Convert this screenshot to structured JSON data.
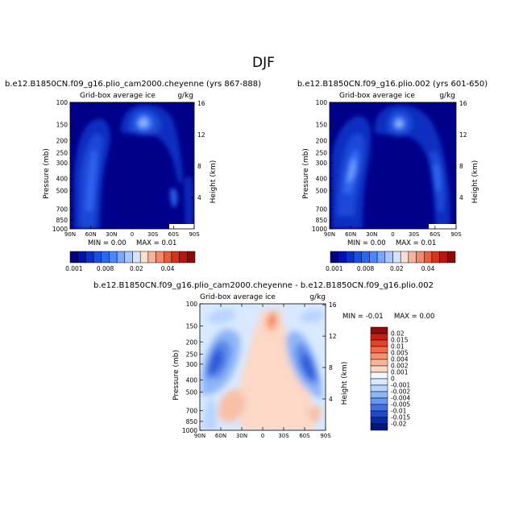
{
  "figure": {
    "season": "DJF",
    "panel_subtitle": "Grid-box average ice",
    "units": "g/kg",
    "y_left_label": "Pressure (mb)",
    "y_right_label": "Height (km)",
    "pressure_ticks": [
      "100",
      "150",
      "200",
      "250",
      "300",
      "400",
      "500",
      "700",
      "850",
      "1000"
    ],
    "height_ticks": [
      "16",
      "12",
      "8",
      "4"
    ],
    "lat_ticks": [
      "90N",
      "60N",
      "30N",
      "0",
      "30S",
      "60S",
      "90S"
    ]
  },
  "panels": [
    {
      "title": "b.e12.B1850CN.f09_g16.plio_cam2000.cheyenne (yrs 867-888)",
      "min_text": "MIN =    0.00",
      "max_text": "MAX =    0.01"
    },
    {
      "title": "b.e12.B1850CN.f09_g16.plio.002 (yrs 601-650)",
      "min_text": "MIN =    0.00",
      "max_text": "MAX =    0.01"
    },
    {
      "title": "b.e12.B1850CN.f09_g16.plio_cam2000.cheyenne - b.e12.B1850CN.f09_g16.plio.002",
      "min_text": "MIN =   -0.01",
      "max_text": "MAX =    0.00"
    }
  ],
  "colorbar_abs": {
    "labels": [
      "0.001",
      "0.008",
      "0.02",
      "0.04"
    ],
    "colors": [
      "#00007f",
      "#0010b0",
      "#0a2fd0",
      "#1a4ee0",
      "#2a66f0",
      "#4a86ff",
      "#7aa6ff",
      "#a8c6ff",
      "#d2e4ff",
      "#fde0cf",
      "#f8b39a",
      "#f38a6a",
      "#e95c3d",
      "#d8321f",
      "#b81610",
      "#8c0a08"
    ]
  },
  "colorbar_diff": {
    "labels": [
      "0.02",
      "0.015",
      "0.01",
      "0.005",
      "0.004",
      "0.002",
      "0.001",
      "0",
      "-0.001",
      "-0.002",
      "-0.004",
      "-0.005",
      "-0.01",
      "-0.015",
      "-0.02"
    ],
    "colors": [
      "#8b0c0c",
      "#c0221a",
      "#e0432a",
      "#f26a48",
      "#f69070",
      "#f9b59a",
      "#fcd8c6",
      "#f4f7ff",
      "#d9e9ff",
      "#b7d3ff",
      "#8fb6f7",
      "#6a96ef",
      "#4470e2",
      "#2249cc",
      "#0a2aa8",
      "#00157f"
    ]
  },
  "chart_data": [
    {
      "type": "heatmap",
      "title": "b.e12.B1850CN.f09_g16.plio_cam2000.cheyenne (yrs 867-888)",
      "subtitle": "Grid-box average ice",
      "xlabel": "",
      "ylabel": "Pressure (mb)",
      "y2label": "Height (km)",
      "units": "g/kg",
      "x_range": [
        "90N",
        "90S"
      ],
      "y_range": [
        1000,
        100
      ],
      "min": 0.0,
      "max": 0.01
    },
    {
      "type": "heatmap",
      "title": "b.e12.B1850CN.f09_g16.plio.002 (yrs 601-650)",
      "subtitle": "Grid-box average ice",
      "xlabel": "",
      "ylabel": "Pressure (mb)",
      "y2label": "Height (km)",
      "units": "g/kg",
      "x_range": [
        "90N",
        "90S"
      ],
      "y_range": [
        1000,
        100
      ],
      "min": 0.0,
      "max": 0.01
    },
    {
      "type": "heatmap",
      "title": "b.e12.B1850CN.f09_g16.plio_cam2000.cheyenne - b.e12.B1850CN.f09_g16.plio.002",
      "subtitle": "Grid-box average ice",
      "xlabel": "",
      "ylabel": "Pressure (mb)",
      "y2label": "Height (km)",
      "units": "g/kg",
      "x_range": [
        "90N",
        "90S"
      ],
      "y_range": [
        1000,
        100
      ],
      "min": -0.01,
      "max": 0.0
    }
  ]
}
